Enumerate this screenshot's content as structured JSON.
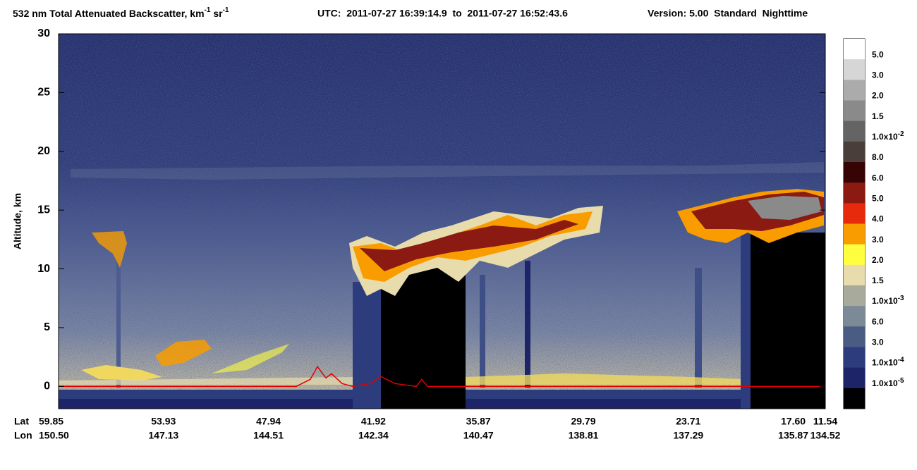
{
  "chart_data": {
    "type": "heatmap",
    "title": {
      "main": [
        "532 nm Total Attenuated Backscatter, km",
        "-1",
        " sr",
        "-1"
      ],
      "utc": "UTC:  2011-07-27 16:39:14.9  to  2011-07-27 16:52:43.6",
      "version": "Version: 5.00  Standard  Nighttime"
    },
    "ylabel": "Altitude, km",
    "ylim": [
      -1.9,
      30
    ],
    "yticks": [
      0,
      5,
      10,
      15,
      20,
      25,
      30
    ],
    "x_rows": {
      "lat_label": "Lat",
      "lon_label": "Lon",
      "lat": [
        "59.85",
        "53.93",
        "47.94",
        "41.92",
        "35.87",
        "29.79",
        "23.71",
        "17.60",
        "11.54"
      ],
      "lon": [
        "150.50",
        "147.13",
        "144.51",
        "142.34",
        "140.47",
        "138.81",
        "137.29",
        "135.87",
        "134.52"
      ]
    },
    "colorbar": {
      "colors": [
        "#ffffff",
        "#d6d6d6",
        "#ababab",
        "#8a8a8a",
        "#646464",
        "#4a3e3a",
        "#360404",
        "#8a1a12",
        "#e82a0c",
        "#f89c00",
        "#ffff40",
        "#e8dcac",
        "#a8aa9c",
        "#7c8a98",
        "#4a5c84",
        "#2c3c7c",
        "#1e2468",
        "#000000"
      ],
      "labels": [
        "5.0",
        "3.0",
        "2.0",
        "1.5",
        {
          "text": "1.0x10",
          "sup": "-2"
        },
        "8.0",
        "6.0",
        "5.0",
        "4.0",
        "3.0",
        "2.0",
        "1.5",
        {
          "text": "1.0x10",
          "sup": "-3"
        },
        "6.0",
        "3.0",
        {
          "text": "1.0x10",
          "sup": "-4"
        },
        {
          "text": "1.0x10",
          "sup": "-5"
        }
      ]
    },
    "surface_color": "#e00000"
  }
}
